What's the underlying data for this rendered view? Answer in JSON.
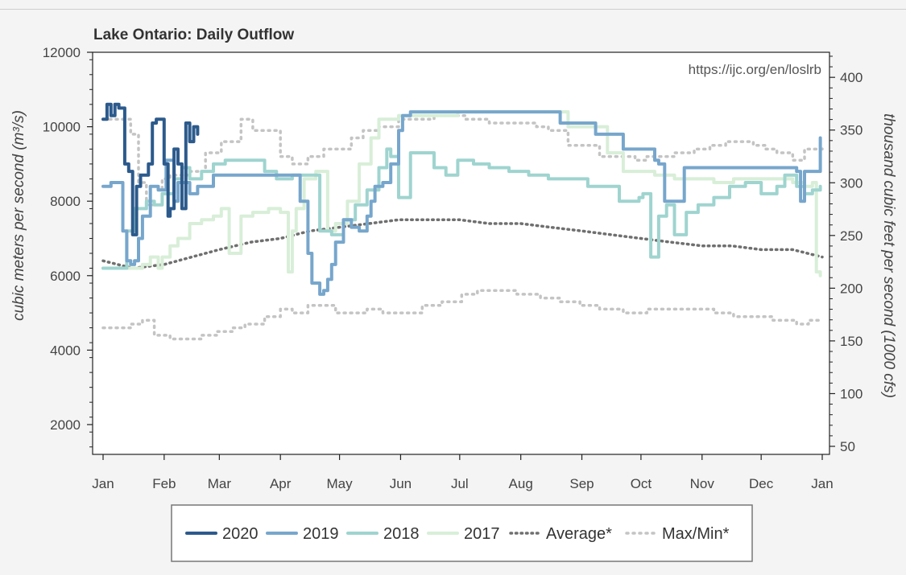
{
  "chart_data": {
    "type": "line",
    "title": "Lake Ontario: Daily Outflow",
    "note": "https://ijc.org/en/loslrb",
    "ylabel": "cubic meters per second (m³/s)",
    "y2label": "thousand cubic feet per second (1000 cfs)",
    "xlim": [
      0,
      365
    ],
    "ylim": [
      1200,
      12000
    ],
    "y_ticks": [
      2000,
      4000,
      6000,
      8000,
      10000,
      12000
    ],
    "y_tick_labels": [
      "2000",
      "4000",
      "6000",
      "8000",
      "10000",
      "12000"
    ],
    "y2_ticks": [
      50,
      100,
      150,
      200,
      250,
      300,
      350,
      400
    ],
    "y2_tick_labels": [
      "50",
      "100",
      "150",
      "200",
      "250",
      "300",
      "350",
      "400"
    ],
    "x_ticks": [
      0,
      31,
      59,
      90,
      120,
      151,
      181,
      212,
      243,
      273,
      304,
      334,
      365
    ],
    "x_tick_labels": [
      "Jan",
      "Feb",
      "Mar",
      "Apr",
      "May",
      "Jun",
      "Jul",
      "Aug",
      "Sep",
      "Oct",
      "Nov",
      "Dec",
      "Jan"
    ],
    "legend_position": "bottom",
    "series": [
      {
        "name": "2020",
        "color": "#2c5a8c",
        "width": 4,
        "dash": "",
        "shape": "step",
        "x": [
          0,
          2,
          4,
          6,
          8,
          11,
          13,
          15,
          17,
          19,
          21,
          23,
          25,
          27,
          29,
          31,
          33,
          34,
          36,
          38,
          40,
          42,
          44,
          46,
          48
        ],
        "y": [
          10200,
          10600,
          10300,
          10600,
          10500,
          9000,
          8800,
          7100,
          8400,
          8700,
          8700,
          9000,
          10100,
          10200,
          10200,
          9000,
          7600,
          7800,
          9400,
          9000,
          7800,
          10100,
          9600,
          10000,
          9800
        ]
      },
      {
        "name": "2019",
        "color": "#77a6cc",
        "width": 4,
        "dash": "",
        "shape": "step",
        "x": [
          0,
          4,
          8,
          10,
          12,
          14,
          16,
          18,
          20,
          24,
          28,
          32,
          36,
          38,
          44,
          48,
          56,
          70,
          82,
          96,
          100,
          104,
          106,
          110,
          112,
          114,
          116,
          118,
          122,
          126,
          130,
          134,
          136,
          138,
          142,
          146,
          150,
          152,
          156,
          160,
          180,
          220,
          232,
          250,
          264,
          280,
          282,
          285,
          295,
          315,
          325,
          340,
          352,
          354,
          356,
          362,
          364
        ],
        "y": [
          8400,
          8500,
          8500,
          7200,
          6400,
          6300,
          6400,
          7000,
          7600,
          8400,
          8300,
          9100,
          8000,
          8500,
          8200,
          8400,
          8700,
          8700,
          8700,
          8700,
          8000,
          6600,
          5800,
          5500,
          5600,
          5900,
          6300,
          6900,
          7500,
          7300,
          7200,
          7600,
          8000,
          8400,
          8500,
          9000,
          9900,
          10300,
          10400,
          10400,
          10400,
          10400,
          10100,
          9800,
          9400,
          9100,
          9000,
          8000,
          8900,
          8900,
          8900,
          8900,
          8800,
          8000,
          8800,
          8800,
          9700
        ]
      },
      {
        "name": "2018",
        "color": "#9fd4cf",
        "width": 4,
        "dash": "",
        "shape": "step",
        "x": [
          0,
          8,
          12,
          16,
          22,
          26,
          30,
          36,
          40,
          44,
          50,
          56,
          62,
          66,
          74,
          82,
          88,
          96,
          104,
          110,
          116,
          122,
          128,
          134,
          140,
          144,
          146,
          150,
          156,
          162,
          168,
          174,
          180,
          188,
          196,
          206,
          216,
          226,
          246,
          252,
          262,
          272,
          274,
          278,
          282,
          286,
          290,
          296,
          302,
          310,
          318,
          326,
          334,
          342,
          346,
          352,
          356,
          360,
          364
        ],
        "y": [
          6200,
          6200,
          7200,
          7800,
          8000,
          7900,
          8200,
          8600,
          8900,
          8600,
          8800,
          9000,
          9100,
          9100,
          9100,
          8800,
          8600,
          8700,
          8700,
          7200,
          7100,
          7500,
          7900,
          8300,
          8900,
          9400,
          9200,
          8100,
          9300,
          9300,
          8900,
          8700,
          9100,
          9000,
          8900,
          8800,
          8700,
          8600,
          8400,
          8400,
          8000,
          8100,
          8200,
          6500,
          7600,
          7900,
          7100,
          7700,
          7900,
          8100,
          8400,
          8500,
          8200,
          8400,
          8700,
          8400,
          8200,
          8300,
          8400
        ]
      },
      {
        "name": "2017",
        "color": "#d8eed8",
        "width": 4,
        "dash": "",
        "shape": "step",
        "x": [
          0,
          12,
          20,
          24,
          28,
          30,
          34,
          38,
          44,
          50,
          56,
          60,
          64,
          70,
          76,
          84,
          90,
          94,
          96,
          98,
          102,
          108,
          114,
          118,
          124,
          130,
          136,
          140,
          146,
          150,
          160,
          180,
          200,
          218,
          236,
          256,
          264,
          272,
          280,
          290,
          300,
          310,
          320,
          340,
          350,
          356,
          360,
          362,
          364
        ],
        "y": [
          6200,
          6200,
          6300,
          6500,
          6200,
          6500,
          6800,
          7000,
          7400,
          7500,
          7600,
          7800,
          6600,
          7600,
          7700,
          7800,
          7700,
          6100,
          7200,
          7800,
          8600,
          8800,
          7200,
          7400,
          8000,
          9000,
          9700,
          10200,
          10200,
          10300,
          10300,
          10400,
          10400,
          10400,
          10000,
          9300,
          8800,
          8800,
          8700,
          8600,
          8600,
          8500,
          8600,
          8600,
          8500,
          8400,
          8500,
          6100,
          6000
        ]
      },
      {
        "name": "Average*",
        "color": "#6f6f6f",
        "width": 3.5,
        "dash": "1.5 5",
        "shape": "smooth",
        "x": [
          0,
          15,
          31,
          45,
          59,
          75,
          90,
          105,
          120,
          135,
          150,
          165,
          181,
          196,
          212,
          227,
          243,
          258,
          273,
          288,
          304,
          319,
          334,
          350,
          365
        ],
        "y": [
          6400,
          6200,
          6300,
          6500,
          6700,
          6900,
          7000,
          7200,
          7300,
          7400,
          7500,
          7500,
          7500,
          7400,
          7400,
          7300,
          7200,
          7100,
          7000,
          6900,
          6800,
          6800,
          6700,
          6700,
          6500
        ]
      },
      {
        "name": "Max/Min*",
        "color": "#c4c4c4",
        "width": 3.5,
        "dash": "2 6",
        "shape": "step",
        "x": [
          0,
          8,
          14,
          18,
          22,
          30,
          34,
          44,
          52,
          60,
          70,
          76,
          90,
          96,
          104,
          112,
          126,
          132,
          140,
          150,
          160,
          168,
          178,
          184,
          196,
          206,
          212,
          220,
          226,
          236,
          252,
          270,
          276,
          290,
          300,
          308,
          316,
          330,
          336,
          342,
          350,
          356,
          365
        ],
        "y": [
          10200,
          10200,
          9800,
          8500,
          7900,
          8600,
          8700,
          8800,
          9300,
          9600,
          10200,
          9900,
          9200,
          9000,
          9200,
          9400,
          9700,
          9900,
          10000,
          10200,
          10200,
          10300,
          10300,
          10200,
          10100,
          10100,
          10100,
          10000,
          9900,
          9500,
          9200,
          9100,
          9200,
          9300,
          9400,
          9500,
          9600,
          9500,
          9400,
          9300,
          9100,
          9400,
          9500
        ]
      },
      {
        "name": "",
        "color": "#c4c4c4",
        "width": 3.5,
        "dash": "2 6",
        "shape": "step",
        "x": [
          0,
          8,
          14,
          20,
          26,
          34,
          44,
          50,
          58,
          66,
          72,
          82,
          90,
          96,
          104,
          118,
          126,
          134,
          142,
          152,
          162,
          172,
          182,
          190,
          200,
          210,
          222,
          232,
          242,
          252,
          264,
          276,
          284,
          300,
          310,
          320,
          330,
          340,
          346,
          352,
          358,
          365
        ],
        "y": [
          4600,
          4600,
          4700,
          4800,
          4400,
          4300,
          4300,
          4400,
          4500,
          4600,
          4700,
          4900,
          5100,
          5000,
          5200,
          5000,
          5000,
          5100,
          5000,
          5000,
          5200,
          5300,
          5500,
          5600,
          5600,
          5500,
          5400,
          5300,
          5200,
          5100,
          5000,
          5100,
          5100,
          5100,
          5000,
          4900,
          4900,
          4800,
          4800,
          4700,
          4800,
          4800
        ]
      }
    ]
  }
}
